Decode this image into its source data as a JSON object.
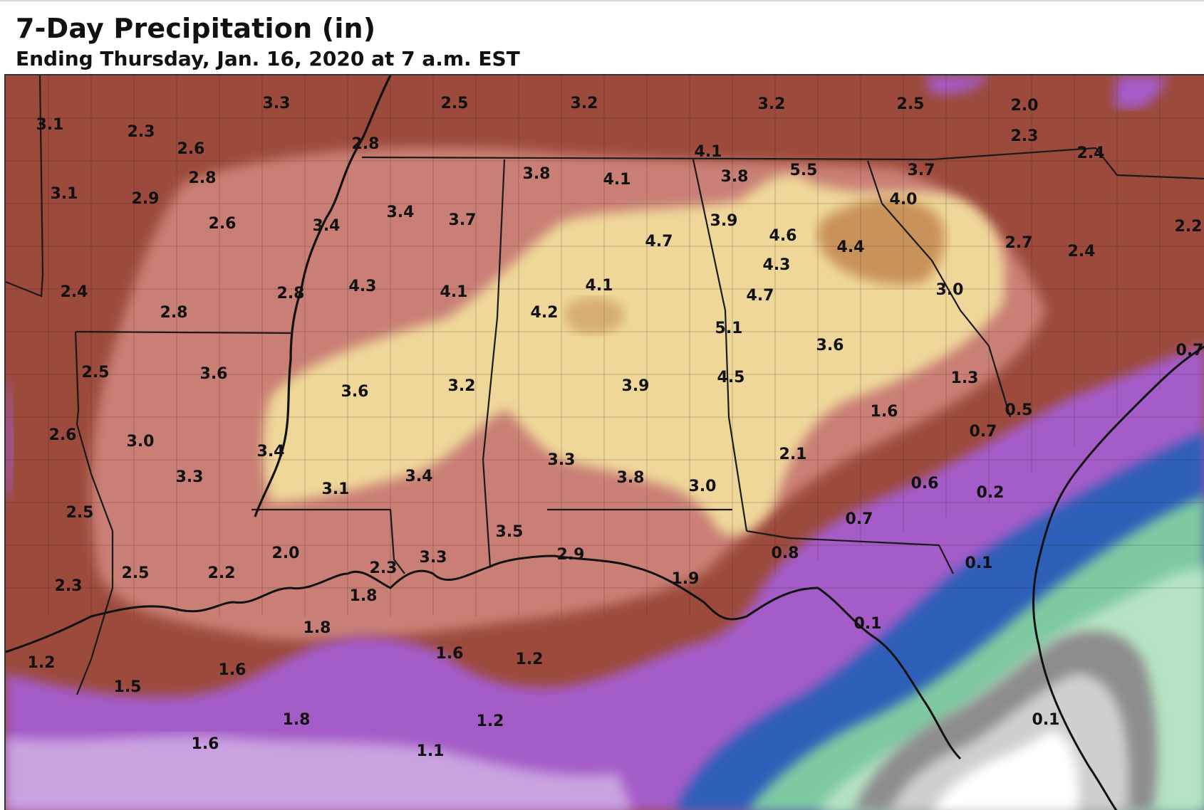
{
  "header": {
    "title": "7-Day Precipitation (in)",
    "subtitle": "Ending Thursday, Jan. 16, 2020 at 7 a.m. EST"
  },
  "colors": {
    "brown_2_3in": "#9c4a3c",
    "rose_3_4in": "#c97f75",
    "tan_4_5in": "#efd79a",
    "gold_5in_plus": "#c9925a",
    "purple_1_2in": "#a45bc8",
    "lavender_1_2in": "#c9a2e0",
    "blue_0_5_1in": "#2f5fb8",
    "green_0_1_0_5in": "#7fc9a2",
    "gray_trace": "#8d8d8d",
    "white_none": "#ffffff",
    "boundary": "#1a1a1a"
  },
  "map_labels": [
    {
      "id": "lbl-1",
      "value": "3.1"
    },
    {
      "id": "lbl-2",
      "value": "3.3"
    },
    {
      "id": "lbl-3",
      "value": "2.5"
    },
    {
      "id": "lbl-4",
      "value": "3.2"
    },
    {
      "id": "lbl-5",
      "value": "3.2"
    },
    {
      "id": "lbl-6",
      "value": "2.5"
    },
    {
      "id": "lbl-7",
      "value": "2.0"
    },
    {
      "id": "lbl-8",
      "value": "2.3"
    },
    {
      "id": "lbl-9",
      "value": "2.6"
    },
    {
      "id": "lbl-10",
      "value": "2.8"
    },
    {
      "id": "lbl-11",
      "value": "2.8"
    },
    {
      "id": "lbl-12",
      "value": "4.1"
    },
    {
      "id": "lbl-13",
      "value": "5.5"
    },
    {
      "id": "lbl-14",
      "value": "3.7"
    },
    {
      "id": "lbl-15",
      "value": "2.3"
    },
    {
      "id": "lbl-16",
      "value": "2.4"
    },
    {
      "id": "lbl-17",
      "value": "3.8"
    },
    {
      "id": "lbl-18",
      "value": "4.1"
    },
    {
      "id": "lbl-19",
      "value": "3.8"
    },
    {
      "id": "lbl-20",
      "value": "3.1"
    },
    {
      "id": "lbl-21",
      "value": "2.9"
    },
    {
      "id": "lbl-22",
      "value": "4.0"
    },
    {
      "id": "lbl-23",
      "value": "3.4"
    },
    {
      "id": "lbl-24",
      "value": "3.7"
    },
    {
      "id": "lbl-25",
      "value": "2.6"
    },
    {
      "id": "lbl-26",
      "value": "3.4"
    },
    {
      "id": "lbl-27",
      "value": "3.9"
    },
    {
      "id": "lbl-28",
      "value": "4.7"
    },
    {
      "id": "lbl-29",
      "value": "4.6"
    },
    {
      "id": "lbl-30",
      "value": "4.4"
    },
    {
      "id": "lbl-31",
      "value": "2.7"
    },
    {
      "id": "lbl-32",
      "value": "2.4"
    },
    {
      "id": "lbl-33",
      "value": "2.2"
    },
    {
      "id": "lbl-34",
      "value": "4.3"
    },
    {
      "id": "lbl-35",
      "value": "2.4"
    },
    {
      "id": "lbl-36",
      "value": "4.3"
    },
    {
      "id": "lbl-37",
      "value": "2.8"
    },
    {
      "id": "lbl-38",
      "value": "4.1"
    },
    {
      "id": "lbl-39",
      "value": "4.1"
    },
    {
      "id": "lbl-40",
      "value": "4.7"
    },
    {
      "id": "lbl-41",
      "value": "3.0"
    },
    {
      "id": "lbl-42",
      "value": "2.8"
    },
    {
      "id": "lbl-43",
      "value": "4.2"
    },
    {
      "id": "lbl-44",
      "value": "5.1"
    },
    {
      "id": "lbl-45",
      "value": "3.6"
    },
    {
      "id": "lbl-46",
      "value": "0.7"
    },
    {
      "id": "lbl-47",
      "value": "2.5"
    },
    {
      "id": "lbl-48",
      "value": "3.6"
    },
    {
      "id": "lbl-49",
      "value": "3.6"
    },
    {
      "id": "lbl-50",
      "value": "3.2"
    },
    {
      "id": "lbl-51",
      "value": "3.9"
    },
    {
      "id": "lbl-52",
      "value": "4.5"
    },
    {
      "id": "lbl-53",
      "value": "1.3"
    },
    {
      "id": "lbl-54",
      "value": "1.6"
    },
    {
      "id": "lbl-55",
      "value": "0.5"
    },
    {
      "id": "lbl-56",
      "value": "2.6"
    },
    {
      "id": "lbl-57",
      "value": "3.0"
    },
    {
      "id": "lbl-58",
      "value": "0.7"
    },
    {
      "id": "lbl-59",
      "value": "3.4"
    },
    {
      "id": "lbl-60",
      "value": "3.3"
    },
    {
      "id": "lbl-61",
      "value": "2.1"
    },
    {
      "id": "lbl-62",
      "value": "3.3"
    },
    {
      "id": "lbl-63",
      "value": "3.4"
    },
    {
      "id": "lbl-64",
      "value": "3.8"
    },
    {
      "id": "lbl-65",
      "value": "0.6"
    },
    {
      "id": "lbl-66",
      "value": "3.1"
    },
    {
      "id": "lbl-67",
      "value": "3.0"
    },
    {
      "id": "lbl-68",
      "value": "0.2"
    },
    {
      "id": "lbl-69",
      "value": "2.5"
    },
    {
      "id": "lbl-70",
      "value": "3.5"
    },
    {
      "id": "lbl-71",
      "value": "0.7"
    },
    {
      "id": "lbl-72",
      "value": "2.0"
    },
    {
      "id": "lbl-73",
      "value": "2.9"
    },
    {
      "id": "lbl-74",
      "value": "3.3"
    },
    {
      "id": "lbl-75",
      "value": "0.8"
    },
    {
      "id": "lbl-76",
      "value": "0.1"
    },
    {
      "id": "lbl-77",
      "value": "2.5"
    },
    {
      "id": "lbl-78",
      "value": "2.2"
    },
    {
      "id": "lbl-79",
      "value": "2.3"
    },
    {
      "id": "lbl-80",
      "value": "1.9"
    },
    {
      "id": "lbl-81",
      "value": "2.3"
    },
    {
      "id": "lbl-82",
      "value": "1.8"
    },
    {
      "id": "lbl-83",
      "value": "0.1"
    },
    {
      "id": "lbl-84",
      "value": "1.8"
    },
    {
      "id": "lbl-85",
      "value": "1.2"
    },
    {
      "id": "lbl-86",
      "value": "1.6"
    },
    {
      "id": "lbl-87",
      "value": "1.6"
    },
    {
      "id": "lbl-88",
      "value": "1.2"
    },
    {
      "id": "lbl-89",
      "value": "1.5"
    },
    {
      "id": "lbl-90",
      "value": "1.8"
    },
    {
      "id": "lbl-91",
      "value": "1.2"
    },
    {
      "id": "lbl-92",
      "value": "0.1"
    },
    {
      "id": "lbl-93",
      "value": "1.6"
    },
    {
      "id": "lbl-94",
      "value": "1.1"
    }
  ]
}
